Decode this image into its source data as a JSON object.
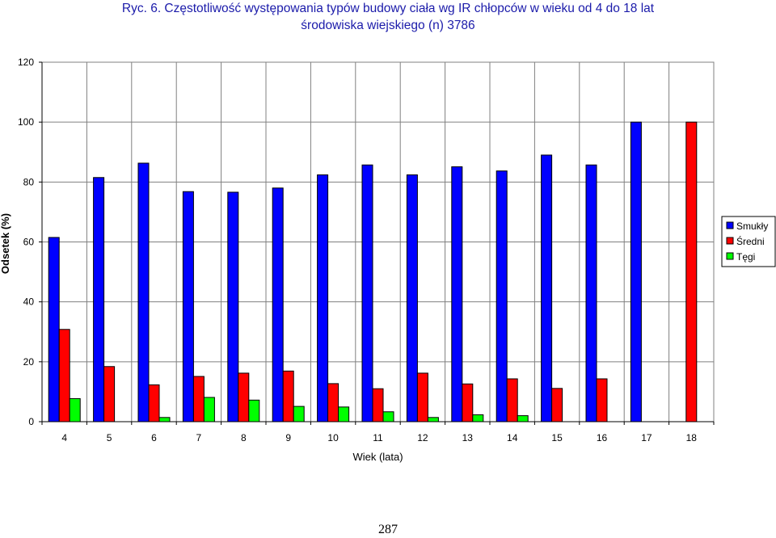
{
  "title_lines": [
    "Ryc. 6.  Częstotliwość występowania typów budowy ciała wg IR chłopców w wieku od 4 do 18 lat",
    "środowiska wiejskiego (n) 3786"
  ],
  "page_number": "287",
  "colors": {
    "Smukły": "#0000ff",
    "Średni": "#ff0000",
    "Tęgi": "#00ff00"
  },
  "chart_data": {
    "type": "bar",
    "title": "Ryc. 6.  Częstotliwość występowania typów budowy ciała wg IR chłopców w wieku od 4 do 18 lat środowiska wiejskiego (n) 3786",
    "xlabel": "Wiek (lata)",
    "ylabel": "Odsetek (%)",
    "categories": [
      "4",
      "5",
      "6",
      "7",
      "8",
      "9",
      "10",
      "11",
      "12",
      "13",
      "14",
      "15",
      "16",
      "17",
      "18"
    ],
    "series": [
      {
        "name": "Smukły",
        "values": [
          61.5,
          81.5,
          86.3,
          76.8,
          76.6,
          78.0,
          82.4,
          85.7,
          82.4,
          85.1,
          83.7,
          89.0,
          85.7,
          100,
          0
        ]
      },
      {
        "name": "Średni",
        "values": [
          30.8,
          18.4,
          12.3,
          15.1,
          16.2,
          16.9,
          12.7,
          11.0,
          16.2,
          12.6,
          14.3,
          11.1,
          14.3,
          0,
          100
        ]
      },
      {
        "name": "Tęgi",
        "values": [
          7.7,
          0,
          1.4,
          8.1,
          7.2,
          5.1,
          4.9,
          3.3,
          1.4,
          2.3,
          2.0,
          0,
          0,
          0,
          0
        ]
      }
    ],
    "ylim": [
      0,
      120
    ],
    "yticks": [
      0,
      20,
      40,
      60,
      80,
      100,
      120
    ],
    "grid": true,
    "legend": "right"
  }
}
